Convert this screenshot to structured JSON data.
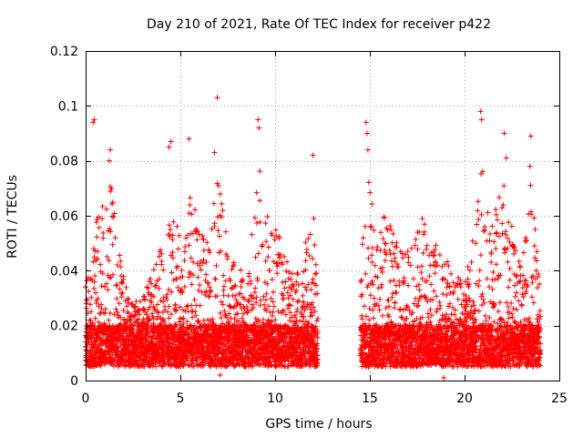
{
  "chart_data": {
    "type": "scatter",
    "title": "Day 210 of 2021, Rate Of TEC Index for receiver p422",
    "xlabel": "GPS time / hours",
    "ylabel": "ROTI / TECUs",
    "xlim": [
      0,
      25
    ],
    "ylim": [
      0,
      0.12
    ],
    "x_ticks": [
      0,
      5,
      10,
      15,
      20,
      25
    ],
    "x_tick_labels": [
      "0",
      "5",
      "10",
      "15",
      "20",
      "25"
    ],
    "y_ticks": [
      0,
      0.02,
      0.04,
      0.06,
      0.08,
      0.1,
      0.12
    ],
    "y_tick_labels": [
      "0",
      "0.02",
      "0.04",
      "0.06",
      "0.08",
      "0.1",
      "0.12"
    ],
    "grid": true,
    "marker": "+",
    "color": "#ff0000",
    "data_segments": [
      {
        "start_hour": 0.0,
        "end_hour": 12.25
      },
      {
        "start_hour": 14.5,
        "end_hour": 24.0
      }
    ],
    "baseline_range": [
      0.005,
      0.02
    ],
    "notable_points": [
      {
        "x": 0.4,
        "y": 0.094
      },
      {
        "x": 0.45,
        "y": 0.095
      },
      {
        "x": 1.3,
        "y": 0.084
      },
      {
        "x": 1.25,
        "y": 0.08
      },
      {
        "x": 4.5,
        "y": 0.087
      },
      {
        "x": 4.4,
        "y": 0.085
      },
      {
        "x": 5.45,
        "y": 0.088
      },
      {
        "x": 6.95,
        "y": 0.103
      },
      {
        "x": 6.8,
        "y": 0.083
      },
      {
        "x": 9.1,
        "y": 0.095
      },
      {
        "x": 9.15,
        "y": 0.092
      },
      {
        "x": 12.0,
        "y": 0.082
      },
      {
        "x": 14.8,
        "y": 0.094
      },
      {
        "x": 14.85,
        "y": 0.09
      },
      {
        "x": 14.9,
        "y": 0.084
      },
      {
        "x": 20.85,
        "y": 0.098
      },
      {
        "x": 20.9,
        "y": 0.095
      },
      {
        "x": 22.1,
        "y": 0.09
      },
      {
        "x": 22.2,
        "y": 0.081
      },
      {
        "x": 23.5,
        "y": 0.089
      },
      {
        "x": 23.45,
        "y": 0.078
      },
      {
        "x": 7.1,
        "y": 0.002
      },
      {
        "x": 18.9,
        "y": 0.001
      }
    ],
    "activity_envelope": [
      {
        "x": 0.0,
        "y": 0.035
      },
      {
        "x": 0.5,
        "y": 0.06
      },
      {
        "x": 1.0,
        "y": 0.065
      },
      {
        "x": 1.3,
        "y": 0.075
      },
      {
        "x": 1.7,
        "y": 0.05
      },
      {
        "x": 2.3,
        "y": 0.028
      },
      {
        "x": 3.0,
        "y": 0.03
      },
      {
        "x": 3.5,
        "y": 0.04
      },
      {
        "x": 4.0,
        "y": 0.05
      },
      {
        "x": 4.5,
        "y": 0.06
      },
      {
        "x": 5.0,
        "y": 0.055
      },
      {
        "x": 5.5,
        "y": 0.07
      },
      {
        "x": 6.0,
        "y": 0.055
      },
      {
        "x": 6.5,
        "y": 0.05
      },
      {
        "x": 6.9,
        "y": 0.075
      },
      {
        "x": 7.3,
        "y": 0.062
      },
      {
        "x": 7.7,
        "y": 0.045
      },
      {
        "x": 8.3,
        "y": 0.04
      },
      {
        "x": 8.7,
        "y": 0.05
      },
      {
        "x": 9.1,
        "y": 0.08
      },
      {
        "x": 9.6,
        "y": 0.06
      },
      {
        "x": 10.2,
        "y": 0.055
      },
      {
        "x": 10.8,
        "y": 0.04
      },
      {
        "x": 11.4,
        "y": 0.04
      },
      {
        "x": 12.0,
        "y": 0.072
      },
      {
        "x": 12.25,
        "y": 0.04
      },
      {
        "x": 14.5,
        "y": 0.04
      },
      {
        "x": 14.85,
        "y": 0.082
      },
      {
        "x": 15.3,
        "y": 0.05
      },
      {
        "x": 15.7,
        "y": 0.06
      },
      {
        "x": 16.2,
        "y": 0.058
      },
      {
        "x": 16.8,
        "y": 0.045
      },
      {
        "x": 17.3,
        "y": 0.055
      },
      {
        "x": 17.8,
        "y": 0.06
      },
      {
        "x": 18.3,
        "y": 0.05
      },
      {
        "x": 18.8,
        "y": 0.048
      },
      {
        "x": 19.4,
        "y": 0.04
      },
      {
        "x": 20.0,
        "y": 0.035
      },
      {
        "x": 20.6,
        "y": 0.06
      },
      {
        "x": 20.9,
        "y": 0.085
      },
      {
        "x": 21.4,
        "y": 0.06
      },
      {
        "x": 22.0,
        "y": 0.078
      },
      {
        "x": 22.5,
        "y": 0.055
      },
      {
        "x": 23.0,
        "y": 0.04
      },
      {
        "x": 23.5,
        "y": 0.075
      },
      {
        "x": 24.0,
        "y": 0.03
      }
    ]
  }
}
